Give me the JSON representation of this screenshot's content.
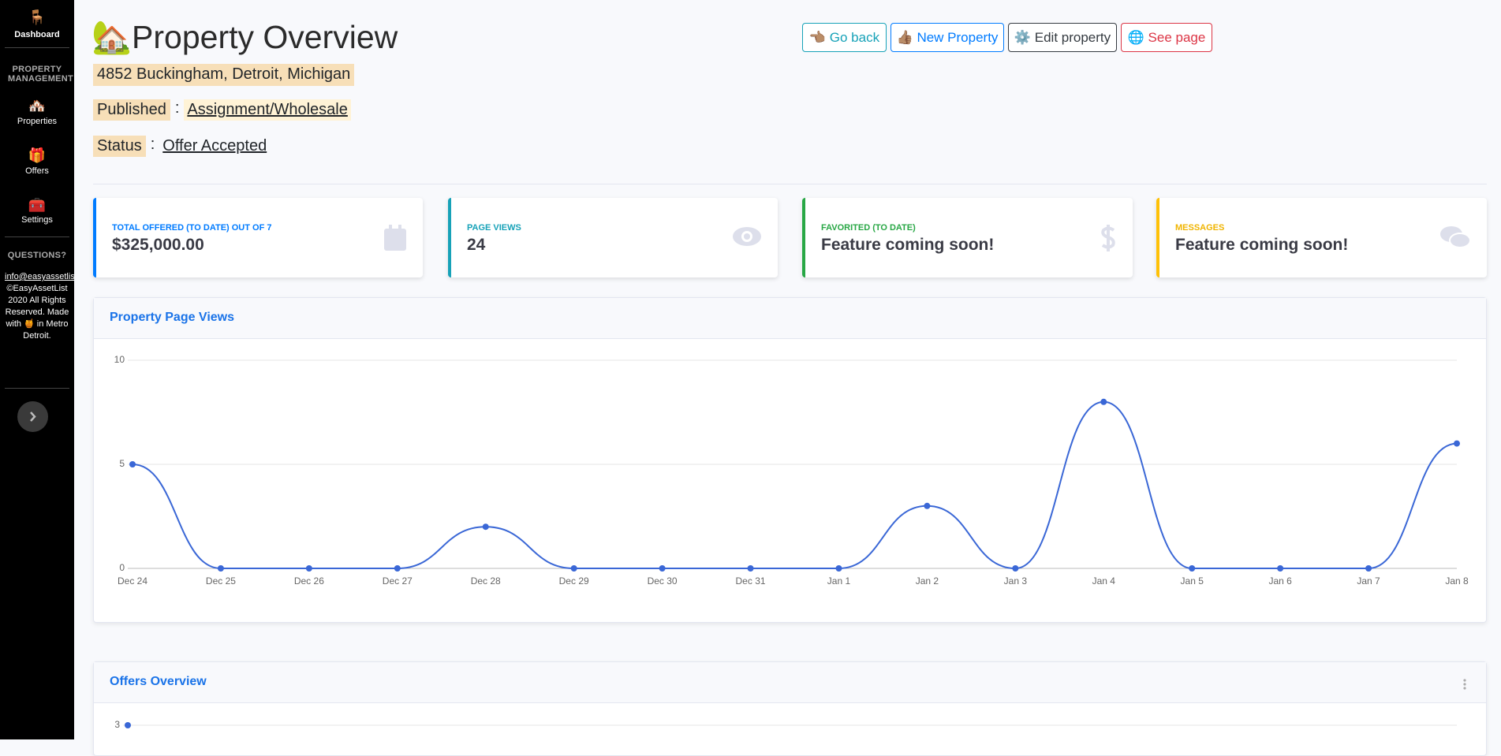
{
  "sidebar": {
    "brand": {
      "icon": "🪑",
      "label": "Dashboard"
    },
    "section": "PROPERTY MANAGEMENT",
    "items": [
      {
        "icon": "🏘️",
        "label": "Properties"
      },
      {
        "icon": "🎁",
        "label": "Offers"
      },
      {
        "icon": "🧰",
        "label": "Settings"
      }
    ],
    "questions": "QUESTIONS?",
    "email": "info@easyassetlist.com",
    "footer": "©EasyAssetList 2020 All Rights Reserved. Made with 🍯 in Metro Detroit."
  },
  "header": {
    "title": "🏡Property Overview",
    "address": "4852 Buckingham, Detroit, Michigan",
    "published_label": "Published",
    "published_value": "Assignment/Wholesale",
    "status_label": "Status",
    "status_value": "Offer Accepted",
    "separator": ":",
    "buttons": [
      "👈🏽 Go back",
      "👍🏽 New Property",
      "⚙️ Edit property",
      "🌐 See page"
    ]
  },
  "cards": [
    {
      "label": "TOTAL OFFERED (TO DATE) OUT OF 7",
      "value": "$325,000.00"
    },
    {
      "label": "PAGE VIEWS",
      "value": "24"
    },
    {
      "label": "FAVORITED (TO DATE)",
      "value": "Feature coming soon!"
    },
    {
      "label": "MESSAGES",
      "value": "Feature coming soon!"
    }
  ],
  "page_views_chart": {
    "type": "line",
    "title": "Property Page Views",
    "categories": [
      "Dec 24",
      "Dec 25",
      "Dec 26",
      "Dec 27",
      "Dec 28",
      "Dec 29",
      "Dec 30",
      "Dec 31",
      "Jan 1",
      "Jan 2",
      "Jan 3",
      "Jan 4",
      "Jan 5",
      "Jan 6",
      "Jan 7",
      "Jan 8"
    ],
    "values": [
      5,
      0,
      0,
      0,
      2,
      0,
      0,
      0,
      0,
      3,
      0,
      8,
      0,
      0,
      0,
      6
    ],
    "color": "#3a67d6",
    "ylim": [
      0,
      10
    ],
    "yticks": [
      0,
      5,
      10
    ],
    "grid": true
  },
  "offers_chart": {
    "type": "line",
    "title": "Offers Overview",
    "values": [
      3
    ],
    "color": "#3a67d6",
    "ylim": [
      0,
      3
    ],
    "yticks": [
      3
    ],
    "grid": true
  }
}
